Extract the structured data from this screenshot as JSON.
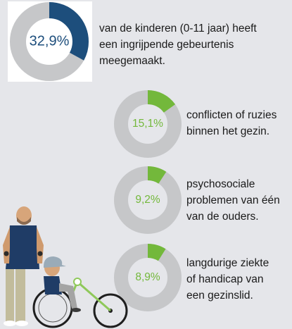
{
  "colors": {
    "background": "#e5e6ea",
    "track": "#c6c7c9",
    "primary": "#1d4e7c",
    "secondary": "#73b83b"
  },
  "chart_data": [
    {
      "type": "pie",
      "value": 32.9,
      "label": "32,9%",
      "text": "van de kinderen (0-11 jaar) heeft\neen ingrijpende gebeurtenis\nmeegemaakt."
    },
    {
      "type": "pie",
      "value": 15.1,
      "label": "15,1%",
      "text": "conflicten of ruzies\nbinnen het gezin."
    },
    {
      "type": "pie",
      "value": 9.2,
      "label": "9,2%",
      "text": "psychosociale\nproblemen van één\nvan de ouders."
    },
    {
      "type": "pie",
      "value": 8.9,
      "label": "8,9%",
      "text": "langdurige ziekte\nof handicap van\neen gezinslid."
    }
  ]
}
